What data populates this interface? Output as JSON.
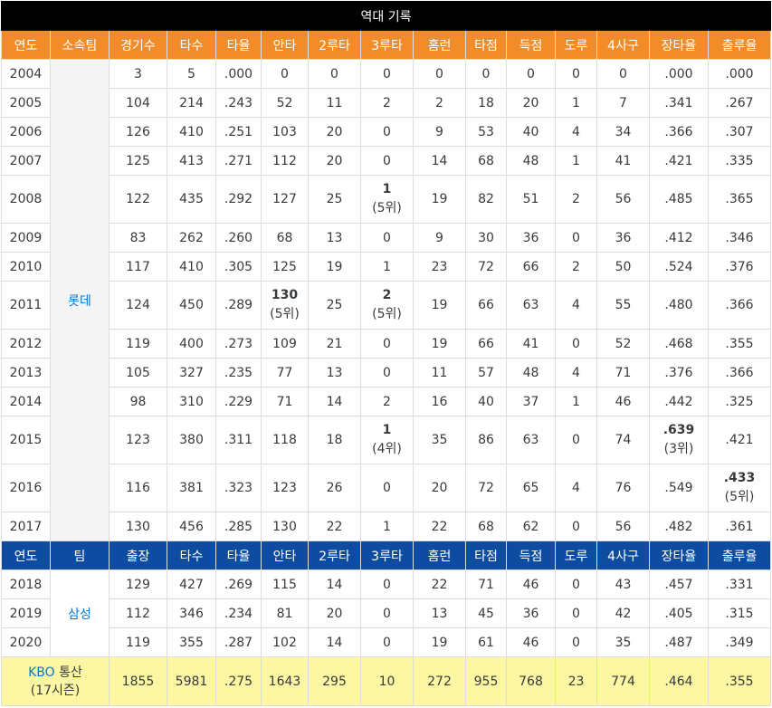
{
  "title": "역대 기록",
  "headers_lotte": [
    "연도",
    "소속팀",
    "경기수",
    "타수",
    "타율",
    "안타",
    "2루타",
    "3루타",
    "홈런",
    "타점",
    "득점",
    "도루",
    "4사구",
    "장타율",
    "출루율"
  ],
  "headers_samsung": [
    "연도",
    "팀",
    "출장",
    "타수",
    "타율",
    "안타",
    "2루타",
    "3루타",
    "홈런",
    "타점",
    "득점",
    "도루",
    "4사구",
    "장타율",
    "출루율"
  ],
  "team_lotte": "롯데",
  "team_samsung": "삼성",
  "rows_lotte": [
    [
      "2004",
      "3",
      "5",
      ".000",
      "0",
      "0",
      "0",
      "0",
      "0",
      "0",
      "0",
      "0",
      ".000",
      ".000"
    ],
    [
      "2005",
      "104",
      "214",
      ".243",
      "52",
      "11",
      "2",
      "2",
      "18",
      "20",
      "1",
      "7",
      ".341",
      ".267"
    ],
    [
      "2006",
      "126",
      "410",
      ".251",
      "103",
      "20",
      "0",
      "9",
      "53",
      "40",
      "4",
      "34",
      ".366",
      ".307"
    ],
    [
      "2007",
      "125",
      "413",
      ".271",
      "112",
      "20",
      "0",
      "14",
      "68",
      "48",
      "1",
      "41",
      ".421",
      ".335"
    ],
    [
      "2008",
      "122",
      "435",
      ".292",
      "127",
      "25",
      "1",
      "19",
      "82",
      "51",
      "2",
      "56",
      ".485",
      ".365"
    ],
    [
      "2009",
      "83",
      "262",
      ".260",
      "68",
      "13",
      "0",
      "9",
      "30",
      "36",
      "0",
      "36",
      ".412",
      ".346"
    ],
    [
      "2010",
      "117",
      "410",
      ".305",
      "125",
      "19",
      "1",
      "23",
      "72",
      "66",
      "2",
      "50",
      ".524",
      ".376"
    ],
    [
      "2011",
      "124",
      "450",
      ".289",
      "130",
      "25",
      "2",
      "19",
      "66",
      "63",
      "4",
      "55",
      ".480",
      ".366"
    ],
    [
      "2012",
      "119",
      "400",
      ".273",
      "109",
      "21",
      "0",
      "19",
      "66",
      "41",
      "0",
      "52",
      ".468",
      ".355"
    ],
    [
      "2013",
      "105",
      "327",
      ".235",
      "77",
      "13",
      "0",
      "11",
      "57",
      "48",
      "4",
      "71",
      ".376",
      ".366"
    ],
    [
      "2014",
      "98",
      "310",
      ".229",
      "71",
      "14",
      "2",
      "16",
      "40",
      "37",
      "1",
      "46",
      ".442",
      ".325"
    ],
    [
      "2015",
      "123",
      "380",
      ".311",
      "118",
      "18",
      "1",
      "35",
      "86",
      "63",
      "0",
      "74",
      ".639",
      ".421"
    ],
    [
      "2016",
      "116",
      "381",
      ".323",
      "123",
      "26",
      "0",
      "20",
      "72",
      "65",
      "4",
      "76",
      ".549",
      ".433"
    ],
    [
      "2017",
      "130",
      "456",
      ".285",
      "130",
      "22",
      "1",
      "22",
      "68",
      "62",
      "0",
      "56",
      ".482",
      ".361"
    ]
  ],
  "rank_notes": {
    "r2008_hr": "(5위)",
    "r2011_2b": "(5위)",
    "r2011_hr": "(5위)",
    "r2015_hr": "(4위)",
    "r2015_slg": "(3위)",
    "r2016_obp": "(5위)"
  },
  "rows_samsung": [
    [
      "2018",
      "129",
      "427",
      ".269",
      "115",
      "14",
      "0",
      "22",
      "71",
      "46",
      "0",
      "43",
      ".457",
      ".331"
    ],
    [
      "2019",
      "112",
      "346",
      ".234",
      "81",
      "20",
      "0",
      "13",
      "45",
      "36",
      "0",
      "42",
      ".405",
      ".315"
    ],
    [
      "2020",
      "119",
      "355",
      ".287",
      "102",
      "14",
      "0",
      "19",
      "61",
      "46",
      "0",
      "35",
      ".487",
      ".349"
    ]
  ],
  "total": {
    "kbo": "KBO",
    "label": "통산",
    "seasons": "(17시즌)",
    "values": [
      "1855",
      "5981",
      ".275",
      "1643",
      "295",
      "10",
      "272",
      "955",
      "768",
      "23",
      "774",
      ".464",
      ".355"
    ]
  },
  "colors": {
    "title_bg": "#000000",
    "header_orange": "#f28c28",
    "header_blue": "#0d4ca1",
    "total_bg": "#fdf7a4",
    "link": "#0275d8"
  }
}
